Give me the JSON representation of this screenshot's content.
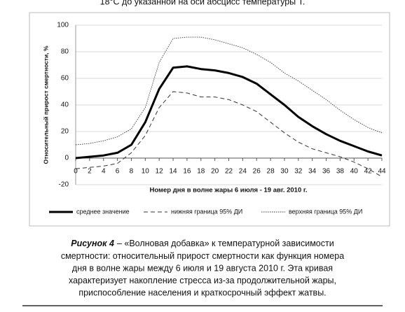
{
  "header_text": "18°С до указанной на оси абсцисс температуры Т.",
  "chart_data": {
    "type": "line",
    "x_label": "Номер дня в волне жары 6 июля - 19 авг. 2010 г.",
    "y_label": "Относительный прирост смертности, %",
    "x": [
      0,
      2,
      4,
      6,
      8,
      10,
      12,
      14,
      16,
      18,
      20,
      22,
      24,
      26,
      28,
      30,
      32,
      34,
      36,
      38,
      40,
      42,
      44
    ],
    "xlim": [
      0,
      44
    ],
    "xticks": [
      0,
      2,
      4,
      6,
      8,
      10,
      12,
      14,
      16,
      18,
      20,
      22,
      24,
      26,
      28,
      30,
      32,
      34,
      36,
      38,
      40,
      42,
      44
    ],
    "ylim": [
      -20,
      100
    ],
    "yticks": [
      -20,
      0,
      20,
      40,
      60,
      80,
      100
    ],
    "grid": true,
    "legend": "bottom",
    "series": [
      {
        "name": "среднее значение",
        "color": "#000000",
        "style": "solid",
        "values": [
          0,
          1,
          2,
          4,
          10,
          27,
          52,
          68,
          69,
          67,
          66,
          64,
          61,
          56,
          48,
          40,
          31,
          24,
          18,
          13,
          9,
          5,
          2
        ]
      },
      {
        "name": "нижняя граница 95% ДИ",
        "color": "#333333",
        "style": "dashed",
        "values": [
          -8,
          -7,
          -6,
          -4,
          4,
          17,
          38,
          50,
          49,
          46,
          46,
          44,
          40,
          35,
          27,
          19,
          12,
          7,
          4,
          1,
          -3,
          -8,
          -14
        ]
      },
      {
        "name": "верхняя граница 95% ДИ",
        "color": "#333333",
        "style": "dotted",
        "values": [
          10,
          11,
          13,
          16,
          22,
          38,
          72,
          90,
          91,
          91,
          89,
          86,
          83,
          78,
          72,
          64,
          58,
          51,
          44,
          36,
          29,
          23,
          19
        ]
      }
    ]
  },
  "caption": {
    "label": "Рисунок 4",
    "lines": [
      "– «Волновая добавка» к температурной зависимости",
      "смертности: относительный прирост смертности как функция номера",
      "дня в волне жары между 6 июля и 19 августа 2010 г. Эта кривая",
      "характеризует накопление стресса из-за продолжительной жары,",
      "приспособление населения и краткосрочный эффект жатвы."
    ]
  }
}
